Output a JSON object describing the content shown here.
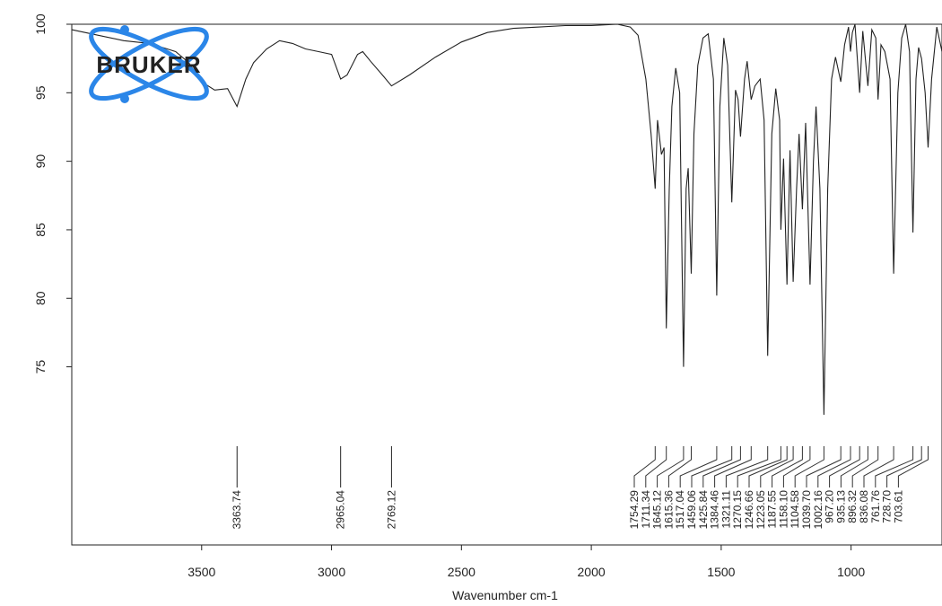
{
  "logo": {
    "text": "BRUKER",
    "color": "#2b86e8"
  },
  "chart_data": {
    "type": "line",
    "xlabel": "Wavenumber cm-1",
    "ylabel": "",
    "title": "",
    "xlim": [
      4000,
      650
    ],
    "ylim": [
      62,
      100
    ],
    "xticks": [
      3500,
      3000,
      2500,
      2000,
      1500,
      1000
    ],
    "yticks": [
      75,
      80,
      85,
      90,
      95,
      100
    ],
    "grid": false,
    "line_color": "#222222",
    "series": [
      {
        "points": [
          [
            4000,
            99.6
          ],
          [
            3900,
            99.2
          ],
          [
            3800,
            98.8
          ],
          [
            3700,
            98.6
          ],
          [
            3600,
            98.0
          ],
          [
            3550,
            97.2
          ],
          [
            3500,
            95.8
          ],
          [
            3450,
            95.2
          ],
          [
            3400,
            95.3
          ],
          [
            3363.74,
            94.0
          ],
          [
            3330,
            96.0
          ],
          [
            3300,
            97.2
          ],
          [
            3250,
            98.2
          ],
          [
            3200,
            98.8
          ],
          [
            3150,
            98.6
          ],
          [
            3100,
            98.2
          ],
          [
            3050,
            98.0
          ],
          [
            3000,
            97.8
          ],
          [
            2965.04,
            96.0
          ],
          [
            2940,
            96.3
          ],
          [
            2900,
            97.8
          ],
          [
            2880,
            98.0
          ],
          [
            2850,
            97.3
          ],
          [
            2800,
            96.2
          ],
          [
            2769.12,
            95.5
          ],
          [
            2700,
            96.3
          ],
          [
            2600,
            97.6
          ],
          [
            2500,
            98.7
          ],
          [
            2400,
            99.4
          ],
          [
            2300,
            99.7
          ],
          [
            2200,
            99.8
          ],
          [
            2100,
            99.9
          ],
          [
            2000,
            99.9
          ],
          [
            1900,
            100.0
          ],
          [
            1850,
            99.8
          ],
          [
            1820,
            99.2
          ],
          [
            1790,
            96.0
          ],
          [
            1770,
            92.0
          ],
          [
            1754.29,
            88.0
          ],
          [
            1745,
            93.0
          ],
          [
            1730,
            90.5
          ],
          [
            1720,
            91.0
          ],
          [
            1711.34,
            77.8
          ],
          [
            1700,
            88.0
          ],
          [
            1690,
            94.0
          ],
          [
            1675,
            96.8
          ],
          [
            1660,
            95.0
          ],
          [
            1645.12,
            75.0
          ],
          [
            1635,
            88.0
          ],
          [
            1627,
            89.5
          ],
          [
            1615.36,
            81.8
          ],
          [
            1605,
            92.0
          ],
          [
            1590,
            97.0
          ],
          [
            1570,
            99.0
          ],
          [
            1550,
            99.3
          ],
          [
            1530,
            96.0
          ],
          [
            1517.04,
            80.2
          ],
          [
            1505,
            94.0
          ],
          [
            1490,
            99.0
          ],
          [
            1475,
            97.0
          ],
          [
            1459.06,
            87.0
          ],
          [
            1445,
            95.2
          ],
          [
            1435,
            94.5
          ],
          [
            1425.84,
            91.8
          ],
          [
            1410,
            96.0
          ],
          [
            1400,
            97.3
          ],
          [
            1384.46,
            94.5
          ],
          [
            1370,
            95.5
          ],
          [
            1350,
            96.0
          ],
          [
            1335,
            93.0
          ],
          [
            1321.11,
            75.8
          ],
          [
            1305,
            92.0
          ],
          [
            1290,
            95.3
          ],
          [
            1275,
            93.0
          ],
          [
            1270.15,
            85.0
          ],
          [
            1260,
            90.2
          ],
          [
            1246.66,
            81.0
          ],
          [
            1235,
            90.8
          ],
          [
            1223.05,
            81.2
          ],
          [
            1210,
            88.0
          ],
          [
            1200,
            92.0
          ],
          [
            1187.55,
            86.5
          ],
          [
            1175,
            92.8
          ],
          [
            1158.1,
            81.0
          ],
          [
            1145,
            90.0
          ],
          [
            1135,
            94.0
          ],
          [
            1120,
            88.0
          ],
          [
            1104.58,
            71.5
          ],
          [
            1090,
            88.0
          ],
          [
            1075,
            96.0
          ],
          [
            1060,
            97.6
          ],
          [
            1039.7,
            95.8
          ],
          [
            1025,
            98.5
          ],
          [
            1010,
            99.8
          ],
          [
            1002.16,
            98.0
          ],
          [
            995,
            99.4
          ],
          [
            985,
            100.0
          ],
          [
            967.2,
            95.0
          ],
          [
            955,
            99.5
          ],
          [
            935.13,
            95.5
          ],
          [
            920,
            99.6
          ],
          [
            905,
            99.0
          ],
          [
            896.32,
            94.5
          ],
          [
            885,
            98.5
          ],
          [
            870,
            98.0
          ],
          [
            850,
            96.0
          ],
          [
            836.08,
            81.8
          ],
          [
            820,
            95.0
          ],
          [
            805,
            99.0
          ],
          [
            790,
            100.0
          ],
          [
            775,
            98.0
          ],
          [
            761.76,
            84.8
          ],
          [
            750,
            96.0
          ],
          [
            740,
            98.3
          ],
          [
            728.7,
            97.5
          ],
          [
            715,
            95.0
          ],
          [
            703.61,
            91.0
          ],
          [
            690,
            96.0
          ],
          [
            670,
            99.8
          ],
          [
            650,
            98.0
          ]
        ]
      }
    ],
    "peaks": [
      {
        "x": 3363.74,
        "label": "3363.74"
      },
      {
        "x": 2965.04,
        "label": "2965.04"
      },
      {
        "x": 2769.12,
        "label": "2769.12"
      },
      {
        "x": 1754.29,
        "label": "1754.29"
      },
      {
        "x": 1711.34,
        "label": "1711.34"
      },
      {
        "x": 1645.12,
        "label": "1645.12"
      },
      {
        "x": 1615.36,
        "label": "1615.36"
      },
      {
        "x": 1517.04,
        "label": "1517.04"
      },
      {
        "x": 1459.06,
        "label": "1459.06"
      },
      {
        "x": 1425.84,
        "label": "1425.84"
      },
      {
        "x": 1384.46,
        "label": "1384.46"
      },
      {
        "x": 1321.11,
        "label": "1321.11"
      },
      {
        "x": 1270.15,
        "label": "1270.15"
      },
      {
        "x": 1246.66,
        "label": "1246.66"
      },
      {
        "x": 1223.05,
        "label": "1223.05"
      },
      {
        "x": 1187.55,
        "label": "1187.55"
      },
      {
        "x": 1158.1,
        "label": "1158.10"
      },
      {
        "x": 1104.58,
        "label": "1104.58"
      },
      {
        "x": 1039.7,
        "label": "1039.70"
      },
      {
        "x": 1002.16,
        "label": "1002.16"
      },
      {
        "x": 967.2,
        "label": "967.20"
      },
      {
        "x": 935.13,
        "label": "935.13"
      },
      {
        "x": 896.32,
        "label": "896.32"
      },
      {
        "x": 836.08,
        "label": "836.08"
      },
      {
        "x": 761.76,
        "label": "761.76"
      },
      {
        "x": 728.7,
        "label": "728.70"
      },
      {
        "x": 703.61,
        "label": "703.61"
      }
    ]
  }
}
